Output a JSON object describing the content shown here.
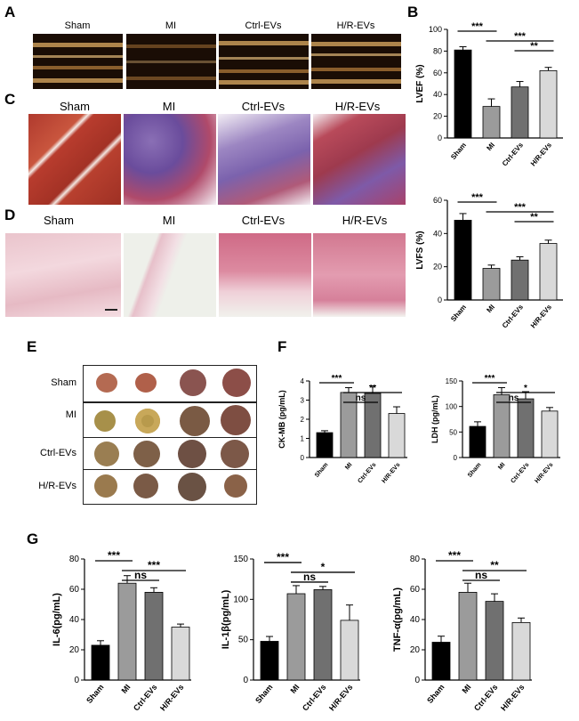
{
  "panel_letters": {
    "A": "A",
    "B": "B",
    "C": "C",
    "D": "D",
    "E": "E",
    "F": "F",
    "G": "G"
  },
  "image_labels": [
    "Sham",
    "MI",
    "Ctrl-EVs",
    "H/R-EVs"
  ],
  "ttc_rows": [
    "Sham",
    "MI",
    "Ctrl-EVs",
    "H/R-EVs"
  ],
  "colors": {
    "sham": "#000000",
    "mi": "#9b9b9b",
    "ctrl": "#707070",
    "hr": "#d9d9d9"
  },
  "chart_data": [
    {
      "id": "lvef",
      "type": "bar",
      "categories": [
        "Sham",
        "MI",
        "Ctrl-EVs",
        "H/R-EVs"
      ],
      "values": [
        81,
        29,
        47,
        62
      ],
      "errors": [
        3,
        7,
        5,
        3
      ],
      "ylabel": "LVEF (%)",
      "ylim": [
        0,
        100
      ],
      "yticks": [
        "0",
        "20",
        "40",
        "60",
        "80",
        "100"
      ],
      "sig": [
        {
          "from": 0,
          "to": 1,
          "label": "***"
        },
        {
          "from": 1,
          "to": 3,
          "label": "***"
        },
        {
          "from": 2,
          "to": 3,
          "label": "**"
        }
      ]
    },
    {
      "id": "lvfs",
      "type": "bar",
      "categories": [
        "Sham",
        "MI",
        "Ctrl-EVs",
        "H/R-EVs"
      ],
      "values": [
        48,
        19,
        24,
        34
      ],
      "errors": [
        4,
        2,
        2,
        2
      ],
      "ylabel": "LVFS (%)",
      "ylim": [
        0,
        60
      ],
      "yticks": [
        "0",
        "20",
        "40",
        "60"
      ],
      "sig": [
        {
          "from": 0,
          "to": 1,
          "label": "***"
        },
        {
          "from": 1,
          "to": 3,
          "label": "***"
        },
        {
          "from": 2,
          "to": 3,
          "label": "**"
        }
      ]
    },
    {
      "id": "ckmb",
      "type": "bar",
      "categories": [
        "Sham",
        "MI",
        "Ctrl-EVs",
        "H/R-EVs"
      ],
      "values": [
        1.3,
        3.4,
        3.35,
        2.3
      ],
      "errors": [
        0.1,
        0.25,
        0.4,
        0.35
      ],
      "ylabel": "CK-MB (pg/mL)",
      "ylim": [
        0,
        4
      ],
      "yticks": [
        "0",
        "1",
        "2",
        "3",
        "4"
      ],
      "sig": [
        {
          "from": 0,
          "to": 1,
          "label": "***"
        },
        {
          "from": 1,
          "to": 2,
          "label": "ns"
        },
        {
          "from": 1,
          "to": 3,
          "label": "**"
        }
      ]
    },
    {
      "id": "ldh",
      "type": "bar",
      "categories": [
        "Sham",
        "MI",
        "Ctrl-EVs",
        "H/R-EVs"
      ],
      "values": [
        61,
        123,
        115,
        91
      ],
      "errors": [
        9,
        14,
        14,
        7
      ],
      "ylabel": "LDH (pg/mL)",
      "ylim": [
        0,
        150
      ],
      "yticks": [
        "0",
        "50",
        "100",
        "150"
      ],
      "sig": [
        {
          "from": 0,
          "to": 1,
          "label": "***"
        },
        {
          "from": 1,
          "to": 2,
          "label": "ns"
        },
        {
          "from": 1,
          "to": 3,
          "label": "*"
        }
      ]
    },
    {
      "id": "il6",
      "type": "bar",
      "categories": [
        "Sham",
        "MI",
        "Ctrl-EVs",
        "H/R-EVs"
      ],
      "values": [
        23,
        64,
        58,
        35
      ],
      "errors": [
        3,
        5,
        3,
        2
      ],
      "ylabel": "IL-6(pg/mL)",
      "ylim": [
        0,
        80
      ],
      "yticks": [
        "0",
        "20",
        "40",
        "60",
        "80"
      ],
      "sig": [
        {
          "from": 0,
          "to": 1,
          "label": "***"
        },
        {
          "from": 1,
          "to": 2,
          "label": "ns"
        },
        {
          "from": 1,
          "to": 3,
          "label": "***"
        }
      ]
    },
    {
      "id": "il1b",
      "type": "bar",
      "categories": [
        "Sham",
        "MI",
        "Ctrl-EVs",
        "H/R-EVs"
      ],
      "values": [
        48,
        107,
        112,
        74
      ],
      "errors": [
        6,
        10,
        4,
        19
      ],
      "ylabel": "IL-1β(pg/mL)",
      "ylim": [
        0,
        150
      ],
      "yticks": [
        "0",
        "50",
        "100",
        "150"
      ],
      "sig": [
        {
          "from": 0,
          "to": 1,
          "label": "***"
        },
        {
          "from": 1,
          "to": 2,
          "label": "ns"
        },
        {
          "from": 1,
          "to": 3,
          "label": "*"
        }
      ]
    },
    {
      "id": "tnfa",
      "type": "bar",
      "categories": [
        "Sham",
        "MI",
        "Ctrl-EVs",
        "H/R-EVs"
      ],
      "values": [
        25,
        58,
        52,
        38
      ],
      "errors": [
        4,
        6,
        5,
        3
      ],
      "ylabel": "TNF-α(pg/mL)",
      "ylim": [
        0,
        80
      ],
      "yticks": [
        "0",
        "20",
        "40",
        "60",
        "80"
      ],
      "sig": [
        {
          "from": 0,
          "to": 1,
          "label": "***"
        },
        {
          "from": 1,
          "to": 2,
          "label": "ns"
        },
        {
          "from": 1,
          "to": 3,
          "label": "**"
        }
      ]
    }
  ]
}
